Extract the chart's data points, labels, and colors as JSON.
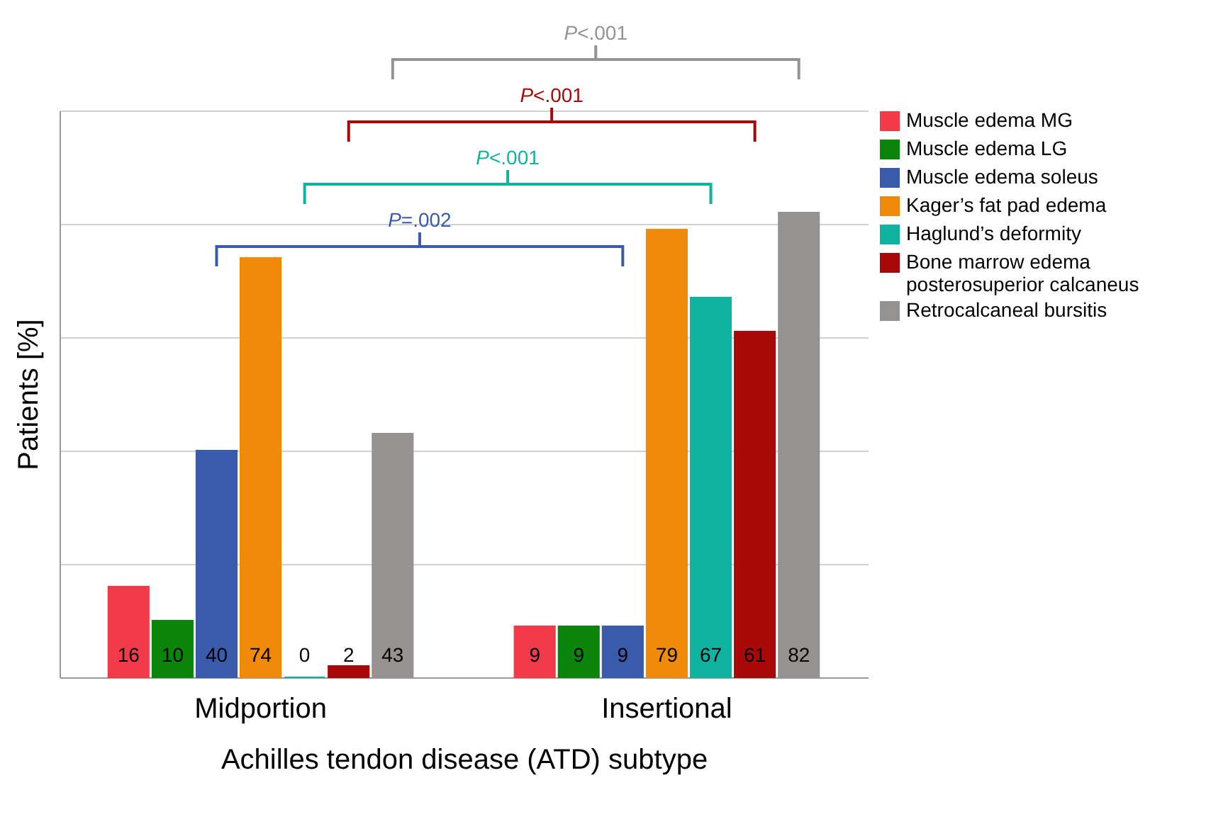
{
  "chart_data": {
    "type": "bar",
    "xlabel": "Achilles tendon disease (ATD) subtype",
    "ylabel": "Patients [%]",
    "categories": [
      "Midportion",
      "Insertional"
    ],
    "series": [
      {
        "name": "Muscle edema MG",
        "color": "#f23a4a",
        "values": [
          16,
          9
        ]
      },
      {
        "name": "Muscle edema LG",
        "color": "#0a840a",
        "values": [
          10,
          9
        ]
      },
      {
        "name": "Muscle edema soleus",
        "color": "#3a5aab",
        "values": [
          40,
          9
        ]
      },
      {
        "name": "Kager’s fat pad edema",
        "color": "#ef8a0a",
        "values": [
          74,
          79
        ]
      },
      {
        "name": "Haglund’s deformity",
        "color": "#10b3a0",
        "values": [
          0,
          67
        ]
      },
      {
        "name": "Bone marrow edema\nposterosuperior calcaneus",
        "color": "#a80808",
        "values": [
          2,
          61
        ]
      },
      {
        "name": "Retrocalcaneal bursitis",
        "color": "#979292",
        "values": [
          43,
          82
        ]
      }
    ],
    "ylim": [
      0,
      100
    ],
    "yticks": [
      {
        "value": 0,
        "label": null
      },
      {
        "value": 20,
        "label": null
      },
      {
        "value": 40,
        "label": null
      },
      {
        "value": 60,
        "label": null
      },
      {
        "value": 80,
        "label": null
      },
      {
        "value": 100,
        "label": null
      }
    ],
    "tick_labels": "x",
    "grid": "y",
    "legend": "top right",
    "data_labels": true,
    "annotations": [
      "P<.001",
      "P<.001",
      "P<.001",
      "P=.002"
    ]
  }
}
